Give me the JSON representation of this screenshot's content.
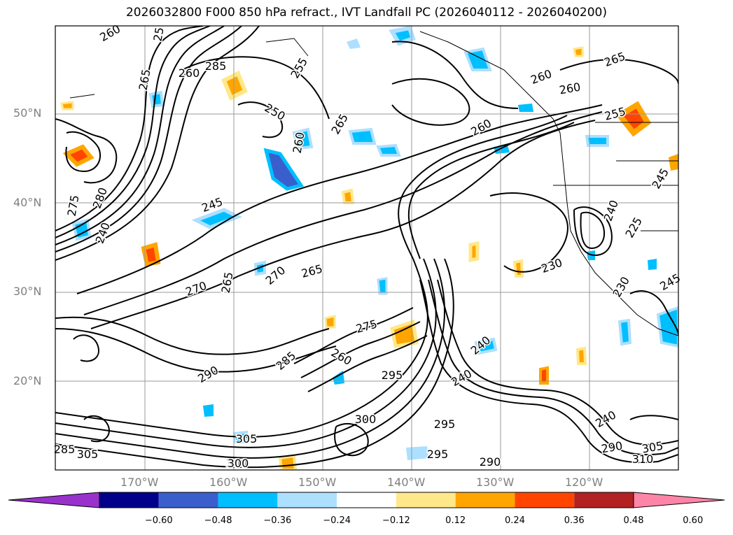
{
  "title": "2026032800 F000 850 hPa refract., IVT Landfall PC (2026040112 - 2026040200)",
  "lat_labels": [
    "50°N",
    "40°N",
    "30°N",
    "20°N"
  ],
  "lon_labels": [
    "170°W",
    "160°W",
    "150°W",
    "140°W",
    "130°W",
    "120°W"
  ],
  "colorbar": {
    "ticks": [
      "−0.60",
      "−0.48",
      "−0.36",
      "−0.24",
      "−0.12",
      "0.12",
      "0.24",
      "0.36",
      "0.48",
      "0.60"
    ],
    "colors": [
      "#9932CC",
      "#00008B",
      "#3A5FCD",
      "#00BFFF",
      "#ADDFFF",
      "#FFFFFF",
      "#FFE88A",
      "#FFA500",
      "#FF4500",
      "#B22222",
      "#FF85A8"
    ]
  },
  "contour_labels": [
    {
      "text": "260"
    },
    {
      "text": "25"
    },
    {
      "text": "285"
    },
    {
      "text": "255"
    },
    {
      "text": "265"
    },
    {
      "text": "250"
    },
    {
      "text": "265"
    },
    {
      "text": "260"
    },
    {
      "text": "260"
    },
    {
      "text": "265"
    },
    {
      "text": "260"
    },
    {
      "text": "260"
    },
    {
      "text": "260"
    },
    {
      "text": "255"
    },
    {
      "text": "245"
    },
    {
      "text": "280"
    },
    {
      "text": "275"
    },
    {
      "text": "240"
    },
    {
      "text": "245"
    },
    {
      "text": "240"
    },
    {
      "text": "225"
    },
    {
      "text": "230"
    },
    {
      "text": "270"
    },
    {
      "text": "265"
    },
    {
      "text": "270"
    },
    {
      "text": "265"
    },
    {
      "text": "275"
    },
    {
      "text": "285"
    },
    {
      "text": "290"
    },
    {
      "text": "260"
    },
    {
      "text": "295"
    },
    {
      "text": "240"
    },
    {
      "text": "240"
    },
    {
      "text": "300"
    },
    {
      "text": "305"
    },
    {
      "text": "295"
    },
    {
      "text": "300"
    },
    {
      "text": "305"
    },
    {
      "text": "300"
    },
    {
      "text": "290"
    },
    {
      "text": "295"
    },
    {
      "text": "240"
    },
    {
      "text": "290"
    },
    {
      "text": "305"
    },
    {
      "text": "310"
    },
    {
      "text": "285"
    },
    {
      "text": "230"
    },
    {
      "text": "245"
    }
  ]
}
